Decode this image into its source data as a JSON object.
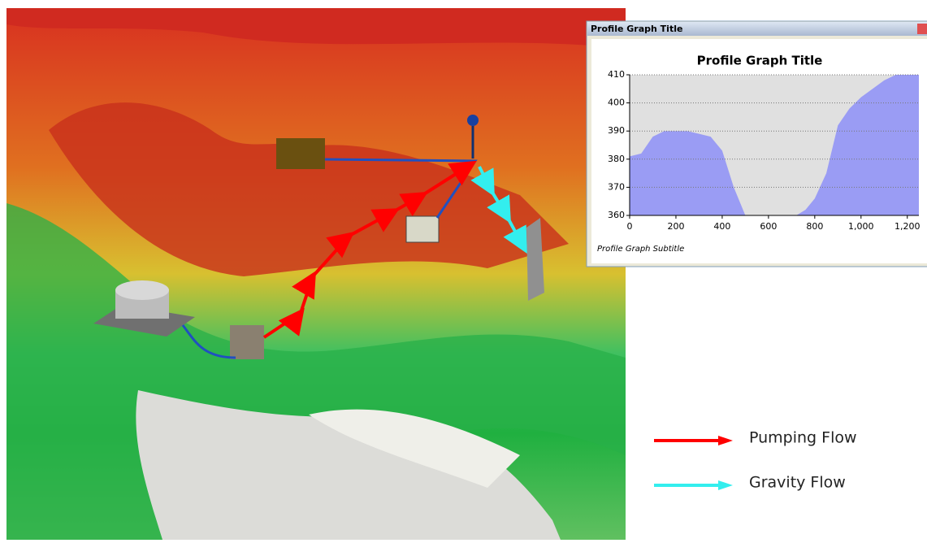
{
  "window": {
    "title": "Profile Graph Title"
  },
  "chart_data": {
    "type": "area",
    "title": "Profile Graph Title",
    "subtitle": "Profile Graph Subtitle",
    "x": [
      0,
      50,
      100,
      150,
      250,
      300,
      350,
      400,
      450,
      500,
      720,
      760,
      800,
      850,
      900,
      950,
      1000,
      1050,
      1100,
      1150,
      1250
    ],
    "series": [
      {
        "color": "#9a9cf4",
        "values": [
          381,
          382,
          388,
          390,
          390,
          389,
          388,
          383,
          370,
          360,
          360,
          362,
          366,
          375,
          392,
          398,
          402,
          405,
          408,
          410,
          410
        ]
      }
    ],
    "xlim": [
      0,
      1250
    ],
    "ylim": [
      360,
      410
    ],
    "xticks": [
      0,
      200,
      400,
      600,
      800,
      {
        "value": 1000,
        "label": "1,000"
      },
      {
        "value": 1200,
        "label": "1,200"
      }
    ],
    "yticks": [
      360,
      370,
      380,
      390,
      400,
      410
    ],
    "grid": true
  },
  "legend": [
    {
      "label": "Pumping Flow",
      "color": "#ff0000"
    },
    {
      "label": "Gravity Flow",
      "color": "#33eeee"
    }
  ]
}
